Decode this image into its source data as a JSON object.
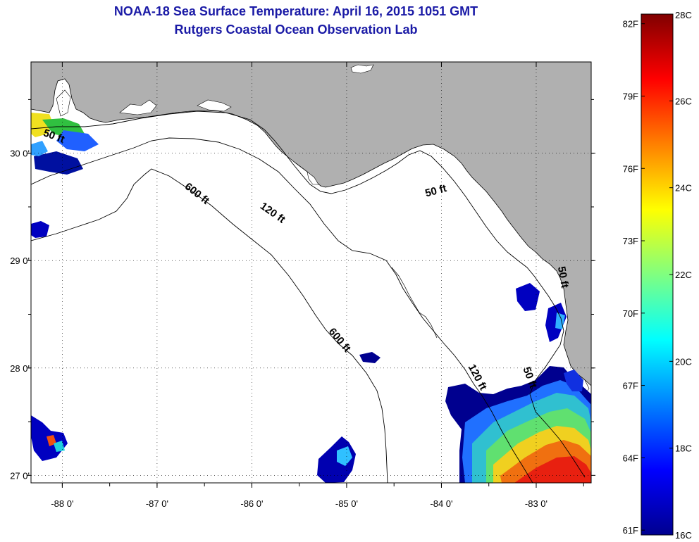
{
  "title": {
    "line1": "NOAA-18 Sea Surface Temperature:  April 16, 2015 1051 GMT",
    "line2": "Rutgers Coastal Ocean Observation Lab"
  },
  "map": {
    "lon_range": [
      -88.33,
      -82.42
    ],
    "lat_range": [
      26.93,
      30.85
    ],
    "lon_ticks": [
      {
        "value": -88,
        "label": "-88 0'"
      },
      {
        "value": -87,
        "label": "-87 0'"
      },
      {
        "value": -86,
        "label": "-86 0'"
      },
      {
        "value": -85,
        "label": "-85 0'"
      },
      {
        "value": -84,
        "label": "-84 0'"
      },
      {
        "value": -83,
        "label": "-83 0'"
      }
    ],
    "lat_ticks": [
      {
        "value": 30,
        "label": "30 0'"
      },
      {
        "value": 29,
        "label": "29 0'"
      },
      {
        "value": 28,
        "label": "28 0'"
      },
      {
        "value": 27,
        "label": "27 0'"
      }
    ],
    "land_color": "#b0b0b0",
    "ocean_color": "#ffffff",
    "grid": "dotted",
    "contour_labels": [
      {
        "text": "50 ft",
        "lon": -88.1,
        "lat": 30.13,
        "angle": 20
      },
      {
        "text": "600 ft",
        "lon": -86.6,
        "lat": 29.6,
        "angle": 38
      },
      {
        "text": "120 ft",
        "lon": -85.8,
        "lat": 29.42,
        "angle": 35
      },
      {
        "text": "50 ft",
        "lon": -84.05,
        "lat": 29.62,
        "angle": -15
      },
      {
        "text": "600 ft",
        "lon": -85.1,
        "lat": 28.24,
        "angle": 50
      },
      {
        "text": "120 ft",
        "lon": -83.65,
        "lat": 27.9,
        "angle": 62
      },
      {
        "text": "50 ft",
        "lon": -83.1,
        "lat": 27.9,
        "angle": 70
      },
      {
        "text": "50 ft",
        "lon": -82.75,
        "lat": 28.84,
        "angle": 80
      }
    ]
  },
  "colorbar": {
    "min_c": 16,
    "max_c": 28,
    "celsius_labels": [
      "28C",
      "26C",
      "24C",
      "22C",
      "20C",
      "18C",
      "16C"
    ],
    "fahrenheit_labels": [
      "82F",
      "79F",
      "76F",
      "73F",
      "70F",
      "67F",
      "64F",
      "61F"
    ],
    "colors": [
      "#00008f",
      "#0000ff",
      "#0080ff",
      "#00ffff",
      "#80ff80",
      "#ffff00",
      "#ff8000",
      "#ff0000",
      "#800000"
    ]
  }
}
